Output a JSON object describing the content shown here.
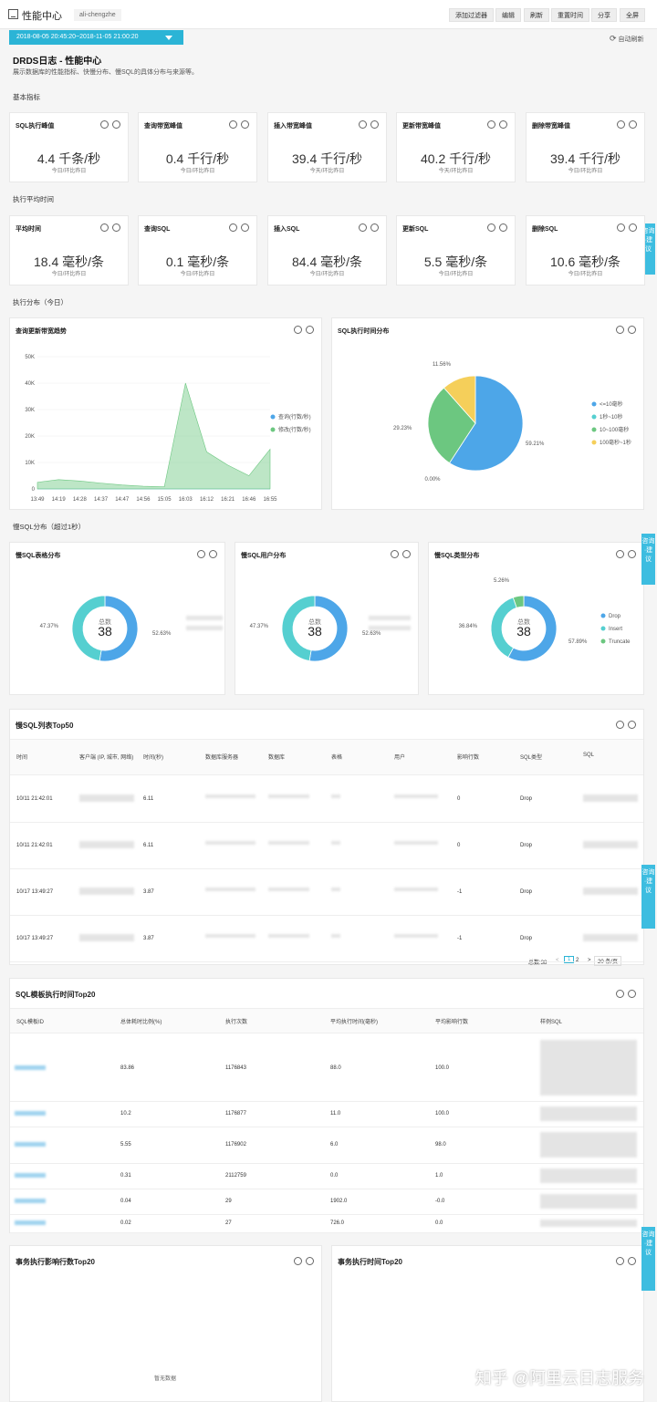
{
  "app": {
    "title": "性能中心",
    "tag": "ali-chengzhe"
  },
  "toolbar": {
    "add_filter": "添加过滤器",
    "edit": "编辑",
    "refresh": "刷新",
    "reset_time": "重置时间",
    "share": "分享",
    "fullscreen": "全屏"
  },
  "time_range": "2018-08-05 20:45:20~2018-11-05 21:00:20",
  "auto_refresh": "自动刷新",
  "dashboard": {
    "title": "DRDS日志 - 性能中心",
    "description": "展示数据库的性能指标、快慢分布、慢SQL的具体分布与来源等。"
  },
  "sections": {
    "basic": "基本指标",
    "avg_time": "执行平均时间",
    "distribution": "执行分布（今日）",
    "slow_sql": "慢SQL分布（超过1秒）"
  },
  "basic_cards": [
    {
      "title": "SQL执行峰值",
      "value": "4.4 千条/秒",
      "sub": "今日/环比昨日"
    },
    {
      "title": "查询带宽峰值",
      "value": "0.4 千行/秒",
      "sub": "今日/环比昨日"
    },
    {
      "title": "插入带宽峰值",
      "value": "39.4 千行/秒",
      "sub": "今天/环比昨日"
    },
    {
      "title": "更新带宽峰值",
      "value": "40.2 千行/秒",
      "sub": "今天/环比昨日"
    },
    {
      "title": "删除带宽峰值",
      "value": "39.4 千行/秒",
      "sub": "今日/环比昨日"
    }
  ],
  "avg_cards": [
    {
      "title": "平均时间",
      "value": "18.4 毫秒/条",
      "sub": "今日/环比昨日"
    },
    {
      "title": "查询SQL",
      "value": "0.1 毫秒/条",
      "sub": "今日/环比昨日"
    },
    {
      "title": "插入SQL",
      "value": "84.4 毫秒/条",
      "sub": "今日/环比昨日"
    },
    {
      "title": "更新SQL",
      "value": "5.5 毫秒/条",
      "sub": "今日/环比昨日"
    },
    {
      "title": "删除SQL",
      "value": "10.6 毫秒/条",
      "sub": "今日/环比昨日"
    }
  ],
  "chart_data": [
    {
      "type": "area",
      "title": "查询更新带宽趋势",
      "x": [
        "13:49",
        "14:19",
        "14:28",
        "14:37",
        "14:47",
        "14:56",
        "15:05",
        "16:03",
        "16:12",
        "16:21",
        "16:46",
        "16:55"
      ],
      "yticks": [
        "0",
        "10K",
        "20K",
        "30K",
        "40K",
        "50K"
      ],
      "ylim": [
        0,
        50000
      ],
      "series": [
        {
          "name": "查询(行数/秒)",
          "color": "#4da6e8",
          "values": [
            0,
            0,
            0,
            0,
            0,
            0,
            0,
            0,
            0,
            0,
            0,
            0
          ]
        },
        {
          "name": "修改(行数/秒)",
          "color": "#6cc780",
          "values": [
            2500,
            3500,
            3000,
            2200,
            1500,
            1000,
            800,
            40000,
            14000,
            9000,
            5000,
            15000
          ]
        }
      ],
      "legend": "right"
    },
    {
      "type": "pie",
      "title": "SQL执行时间分布",
      "slices": [
        {
          "label": "<=10毫秒",
          "value": 59.21,
          "color": "#4da6e8"
        },
        {
          "label": "1秒~10秒",
          "value": 0.0,
          "color": "#55cfd0"
        },
        {
          "label": "10~100毫秒",
          "value": 29.23,
          "color": "#6cc780"
        },
        {
          "label": "100毫秒~1秒",
          "value": 11.56,
          "color": "#f5cf5a"
        }
      ],
      "labels": [
        "59.21%",
        "0.00%",
        "29.23%",
        "11.56%"
      ]
    },
    {
      "type": "pie",
      "title": "慢SQL表格分布",
      "total_label": "总数",
      "total": "38",
      "slices": [
        {
          "label": "",
          "value": 52.63,
          "color": "#4da6e8"
        },
        {
          "label": "",
          "value": 47.37,
          "color": "#55cfd0"
        }
      ],
      "labels": [
        "52.63%",
        "47.37%"
      ]
    },
    {
      "type": "pie",
      "title": "慢SQL用户分布",
      "total_label": "总数",
      "total": "38",
      "slices": [
        {
          "label": "",
          "value": 52.63,
          "color": "#4da6e8"
        },
        {
          "label": "",
          "value": 47.37,
          "color": "#55cfd0"
        }
      ],
      "labels": [
        "52.63%",
        "47.37%"
      ]
    },
    {
      "type": "pie",
      "title": "慢SQL类型分布",
      "total_label": "总数",
      "total": "38",
      "slices": [
        {
          "label": "Drop",
          "value": 57.89,
          "color": "#4da6e8"
        },
        {
          "label": "Insert",
          "value": 36.84,
          "color": "#55cfd0"
        },
        {
          "label": "Truncate",
          "value": 5.26,
          "color": "#6cc780"
        }
      ],
      "labels": [
        "57.89%",
        "36.84%",
        "5.26%"
      ]
    }
  ],
  "slow_sql_table": {
    "title": "慢SQL列表Top50",
    "columns": [
      "时间",
      "客户端 (IP, 城市, 网络)",
      "时间(秒)",
      "数据库服务器",
      "数据库",
      "表格",
      "用户",
      "影响行数",
      "SQL类型",
      "SQL"
    ],
    "rows": [
      {
        "time": "10/11 21:42:01",
        "seconds": "6.11",
        "affected": "0",
        "type": "Drop"
      },
      {
        "time": "10/11 21:42:01",
        "seconds": "6.11",
        "affected": "0",
        "type": "Drop"
      },
      {
        "time": "10/17 13:49:27",
        "seconds": "3.87",
        "affected": "-1",
        "type": "Drop"
      },
      {
        "time": "10/17 13:49:27",
        "seconds": "3.87",
        "affected": "-1",
        "type": "Drop"
      }
    ],
    "pagination": {
      "total": "总数:38",
      "prev": "<",
      "page1": "1",
      "page2": "2",
      "next": ">",
      "page_size": "20 条/页"
    }
  },
  "template_table": {
    "title": "SQL模板执行时间Top20",
    "columns": [
      "SQL模板ID",
      "总体耗时比例(%)",
      "执行次数",
      "平均执行时间(毫秒)",
      "平均影响行数",
      "样例SQL"
    ],
    "rows": [
      {
        "ratio": "83.86",
        "count": "1176843",
        "avg_time": "88.0",
        "avg_rows": "100.0"
      },
      {
        "ratio": "10.2",
        "count": "1176877",
        "avg_time": "11.0",
        "avg_rows": "100.0"
      },
      {
        "ratio": "5.55",
        "count": "1176902",
        "avg_time": "6.0",
        "avg_rows": "98.0"
      },
      {
        "ratio": "0.31",
        "count": "2112759",
        "avg_time": "0.0",
        "avg_rows": "1.0"
      },
      {
        "ratio": "0.04",
        "count": "29",
        "avg_time": "1902.0",
        "avg_rows": "-0.0"
      },
      {
        "ratio": "0.02",
        "count": "27",
        "avg_time": "726.0",
        "avg_rows": "0.0"
      }
    ]
  },
  "bottom": {
    "tx_affect_title": "事务执行影响行数Top20",
    "tx_time_title": "事务执行时间Top20",
    "no_data": "暂无数据"
  },
  "side_tab": "咨询·建议",
  "watermark": "知乎 @阿里云日志服务"
}
